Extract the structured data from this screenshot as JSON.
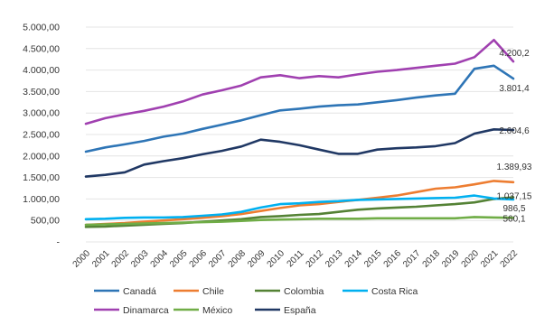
{
  "chart_data": {
    "type": "line",
    "title": "",
    "xlabel": "",
    "ylabel": "",
    "x": [
      "2000",
      "2001",
      "2002",
      "2003",
      "2004",
      "2005",
      "2006",
      "2007",
      "2008",
      "2009",
      "2010",
      "2011",
      "2012",
      "2013",
      "2014",
      "2015",
      "2016",
      "2017",
      "2018",
      "2019",
      "2020",
      "2021",
      "2022"
    ],
    "ylim": [
      0,
      5000
    ],
    "yticks": [
      {
        "value": 0,
        "label": "-"
      },
      {
        "value": 500,
        "label": "500,00"
      },
      {
        "value": 1000,
        "label": "1.000,00"
      },
      {
        "value": 1500,
        "label": "1.500,00"
      },
      {
        "value": 2000,
        "label": "2.000,00"
      },
      {
        "value": 2500,
        "label": "2.500,00"
      },
      {
        "value": 3000,
        "label": "3.000,00"
      },
      {
        "value": 3500,
        "label": "3.500,00"
      },
      {
        "value": 4000,
        "label": "4.000,00"
      },
      {
        "value": 4500,
        "label": "4.500,00"
      },
      {
        "value": 5000,
        "label": "5.000,00"
      }
    ],
    "grid": true,
    "legend_position": "bottom",
    "series": [
      {
        "name": "Canadá",
        "color": "#2e75b6",
        "values": [
          2100,
          2200,
          2270,
          2350,
          2450,
          2520,
          2630,
          2730,
          2830,
          2950,
          3060,
          3100,
          3150,
          3180,
          3200,
          3250,
          3300,
          3360,
          3410,
          3450,
          4030,
          4100,
          3801.4
        ],
        "end_label": "3.801,4"
      },
      {
        "name": "Chile",
        "color": "#ed7d31",
        "values": [
          400,
          420,
          440,
          470,
          500,
          530,
          560,
          600,
          650,
          720,
          790,
          850,
          880,
          930,
          980,
          1030,
          1080,
          1160,
          1240,
          1270,
          1340,
          1420,
          1389.93
        ],
        "end_label": "1.389,93"
      },
      {
        "name": "Colombia",
        "color": "#548235",
        "values": [
          350,
          360,
          380,
          400,
          420,
          440,
          470,
          500,
          530,
          580,
          600,
          630,
          650,
          700,
          750,
          780,
          800,
          820,
          850,
          880,
          920,
          1000,
          1037.15
        ],
        "end_label": "1.037,15"
      },
      {
        "name": "Costa Rica",
        "color": "#00b0f0",
        "values": [
          530,
          540,
          560,
          570,
          570,
          580,
          610,
          640,
          700,
          800,
          880,
          900,
          930,
          950,
          980,
          990,
          1000,
          1010,
          1020,
          1030,
          1080,
          1010,
          986.5
        ],
        "end_label": "986,5"
      },
      {
        "name": "Dinamarca",
        "color": "#a040b0",
        "values": [
          2750,
          2880,
          2970,
          3050,
          3150,
          3270,
          3430,
          3530,
          3640,
          3830,
          3880,
          3810,
          3860,
          3830,
          3900,
          3960,
          4000,
          4050,
          4100,
          4150,
          4300,
          4700,
          4200.2
        ],
        "end_label": "4.200,2"
      },
      {
        "name": "México",
        "color": "#70ad47",
        "values": [
          400,
          410,
          420,
          430,
          440,
          450,
          460,
          470,
          490,
          510,
          520,
          530,
          540,
          540,
          540,
          550,
          550,
          550,
          550,
          550,
          580,
          570,
          560.1
        ],
        "end_label": "560,1"
      },
      {
        "name": "España",
        "color": "#203864",
        "values": [
          1520,
          1560,
          1620,
          1800,
          1880,
          1950,
          2040,
          2120,
          2220,
          2380,
          2330,
          2250,
          2150,
          2050,
          2050,
          2150,
          2180,
          2200,
          2230,
          2300,
          2520,
          2620,
          2604.6
        ],
        "end_label": "2.604,6"
      }
    ]
  }
}
